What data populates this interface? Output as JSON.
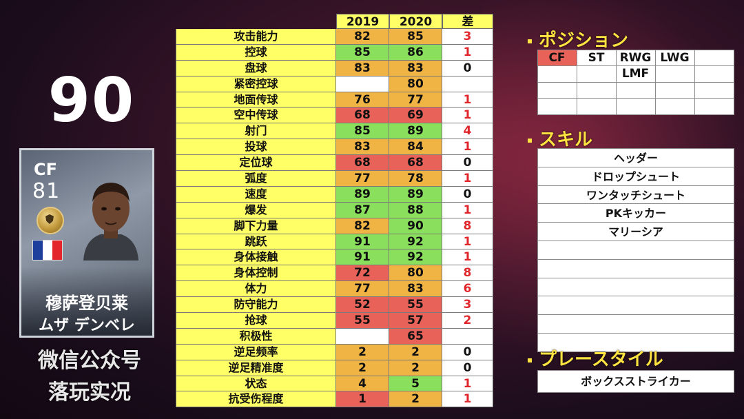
{
  "player": {
    "overall": "90",
    "position": "CF",
    "card_rating": "81",
    "name_cn": "穆萨登贝莱",
    "name_jp": "ムザ デンベレ"
  },
  "watermark": {
    "line1": "微信公众号",
    "line2": "落玩实况"
  },
  "stats": {
    "headers": [
      "2019",
      "2020",
      "差"
    ],
    "rows": [
      {
        "label": "攻击能力",
        "v2019": "82",
        "v2020": "85",
        "diff": "3",
        "c2019": "org",
        "c2020": "org"
      },
      {
        "label": "控球",
        "v2019": "85",
        "v2020": "86",
        "diff": "1",
        "c2019": "grn",
        "c2020": "grn"
      },
      {
        "label": "盘球",
        "v2019": "83",
        "v2020": "83",
        "diff": "0",
        "c2019": "org",
        "c2020": "org"
      },
      {
        "label": "紧密控球",
        "v2019": "",
        "v2020": "80",
        "diff": "",
        "c2019": "wht",
        "c2020": "org"
      },
      {
        "label": "地面传球",
        "v2019": "76",
        "v2020": "77",
        "diff": "1",
        "c2019": "org",
        "c2020": "org"
      },
      {
        "label": "空中传球",
        "v2019": "68",
        "v2020": "69",
        "diff": "1",
        "c2019": "red",
        "c2020": "red"
      },
      {
        "label": "射门",
        "v2019": "85",
        "v2020": "89",
        "diff": "4",
        "c2019": "grn",
        "c2020": "grn"
      },
      {
        "label": "投球",
        "v2019": "83",
        "v2020": "84",
        "diff": "1",
        "c2019": "org",
        "c2020": "org"
      },
      {
        "label": "定位球",
        "v2019": "68",
        "v2020": "68",
        "diff": "0",
        "c2019": "red",
        "c2020": "red"
      },
      {
        "label": "弧度",
        "v2019": "77",
        "v2020": "78",
        "diff": "1",
        "c2019": "org",
        "c2020": "org"
      },
      {
        "label": "速度",
        "v2019": "89",
        "v2020": "89",
        "diff": "0",
        "c2019": "grn",
        "c2020": "grn"
      },
      {
        "label": "爆发",
        "v2019": "87",
        "v2020": "88",
        "diff": "1",
        "c2019": "grn",
        "c2020": "grn"
      },
      {
        "label": "脚下力量",
        "v2019": "82",
        "v2020": "90",
        "diff": "8",
        "c2019": "org",
        "c2020": "grn"
      },
      {
        "label": "跳跃",
        "v2019": "91",
        "v2020": "92",
        "diff": "1",
        "c2019": "grn",
        "c2020": "grn"
      },
      {
        "label": "身体接触",
        "v2019": "91",
        "v2020": "92",
        "diff": "1",
        "c2019": "grn",
        "c2020": "grn"
      },
      {
        "label": "身体控制",
        "v2019": "72",
        "v2020": "80",
        "diff": "8",
        "c2019": "red",
        "c2020": "org"
      },
      {
        "label": "体力",
        "v2019": "77",
        "v2020": "83",
        "diff": "6",
        "c2019": "org",
        "c2020": "org"
      },
      {
        "label": "防守能力",
        "v2019": "52",
        "v2020": "55",
        "diff": "3",
        "c2019": "red",
        "c2020": "red"
      },
      {
        "label": "抢球",
        "v2019": "55",
        "v2020": "57",
        "diff": "2",
        "c2019": "red",
        "c2020": "red"
      },
      {
        "label": "积极性",
        "v2019": "",
        "v2020": "65",
        "diff": "",
        "c2019": "wht",
        "c2020": "red"
      },
      {
        "label": "逆足频率",
        "v2019": "2",
        "v2020": "2",
        "diff": "0",
        "c2019": "org",
        "c2020": "org"
      },
      {
        "label": "逆足精准度",
        "v2019": "2",
        "v2020": "2",
        "diff": "0",
        "c2019": "org",
        "c2020": "org"
      },
      {
        "label": "状态",
        "v2019": "4",
        "v2020": "5",
        "diff": "1",
        "c2019": "org",
        "c2020": "grn"
      },
      {
        "label": "抗受伤程度",
        "v2019": "1",
        "v2020": "2",
        "diff": "1",
        "c2019": "red",
        "c2020": "org"
      }
    ]
  },
  "position_section": {
    "title": "ポジション",
    "cells": [
      "CF",
      "ST",
      "RWG",
      "LWG",
      "",
      "",
      "",
      "LMF",
      "",
      "",
      "",
      "",
      "",
      "",
      "",
      "",
      "",
      "",
      "",
      ""
    ]
  },
  "skill_section": {
    "title": "スキル",
    "skills": [
      "ヘッダー",
      "ドロップシュート",
      "ワンタッチシュート",
      "PKキッカー",
      "マリーシア",
      "",
      "",
      "",
      "",
      "",
      ""
    ]
  },
  "playstyle_section": {
    "title": "プレースタイル",
    "value": "ボックスストライカー"
  },
  "colors": {
    "header_yellow": "#ffff66",
    "cell_red": "#e8625a",
    "cell_orange": "#f0b444",
    "cell_green": "#8ae05c",
    "diff_red": "#e0262a",
    "title_yellow": "#ffe340"
  }
}
